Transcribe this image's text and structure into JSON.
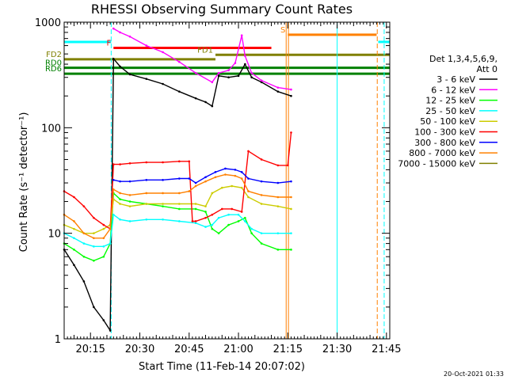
{
  "chart_data": {
    "type": "line",
    "title": "RHESSI Observing Summary Count Rates",
    "xlabel": "Start Time (11-Feb-14 20:07:02)",
    "ylabel": "Count Rate (s⁻¹ detector⁻¹)",
    "x_unit": "minutes after 20:07:02",
    "xlim": [
      0,
      99
    ],
    "ylim": [
      1,
      1000
    ],
    "yscale": "log",
    "x_ticks": [
      {
        "label": "20:15",
        "x": 8
      },
      {
        "label": "20:30",
        "x": 23
      },
      {
        "label": "20:45",
        "x": 38
      },
      {
        "label": "21:00",
        "x": 53
      },
      {
        "label": "21:15",
        "x": 68
      },
      {
        "label": "21:30",
        "x": 83
      },
      {
        "label": "21:45",
        "x": 98
      }
    ],
    "y_ticks": [
      {
        "label": "1",
        "y": 1
      },
      {
        "label": "10",
        "y": 10
      },
      {
        "label": "100",
        "y": 100
      },
      {
        "label": "1000",
        "y": 1000
      }
    ],
    "legend_header": [
      "Det 1,3,4,5,6,9,",
      "Att 0"
    ],
    "legend_position": "right",
    "series": [
      {
        "name": "3 - 6 keV",
        "color": "#000000",
        "points": [
          [
            0,
            7
          ],
          [
            3,
            5
          ],
          [
            6,
            3.5
          ],
          [
            9,
            2
          ],
          [
            12,
            1.5
          ],
          [
            14,
            1.2
          ],
          [
            15,
            450
          ],
          [
            17,
            380
          ],
          [
            20,
            320
          ],
          [
            25,
            290
          ],
          [
            30,
            260
          ],
          [
            35,
            220
          ],
          [
            40,
            190
          ],
          [
            43,
            175
          ],
          [
            45,
            160
          ],
          [
            47,
            310
          ],
          [
            50,
            300
          ],
          [
            53,
            310
          ],
          [
            55,
            400
          ],
          [
            57,
            300
          ],
          [
            60,
            270
          ],
          [
            65,
            220
          ],
          [
            69,
            200
          ]
        ]
      },
      {
        "name": "6 - 12 keV",
        "color": "#ff00ff",
        "points": [
          [
            15,
            870
          ],
          [
            17,
            800
          ],
          [
            20,
            730
          ],
          [
            25,
            600
          ],
          [
            30,
            520
          ],
          [
            35,
            420
          ],
          [
            40,
            330
          ],
          [
            45,
            270
          ],
          [
            47,
            330
          ],
          [
            50,
            350
          ],
          [
            52,
            410
          ],
          [
            54,
            750
          ],
          [
            55,
            480
          ],
          [
            57,
            330
          ],
          [
            60,
            280
          ],
          [
            65,
            240
          ],
          [
            69,
            230
          ]
        ]
      },
      {
        "name": "12 - 25 keV",
        "color": "#00ff00",
        "points": [
          [
            0,
            8
          ],
          [
            3,
            7
          ],
          [
            6,
            6
          ],
          [
            9,
            5.5
          ],
          [
            12,
            6
          ],
          [
            14,
            8
          ],
          [
            15,
            24
          ],
          [
            17,
            21
          ],
          [
            20,
            20
          ],
          [
            25,
            19
          ],
          [
            30,
            18
          ],
          [
            35,
            17
          ],
          [
            40,
            17
          ],
          [
            43,
            16
          ],
          [
            45,
            11
          ],
          [
            47,
            10
          ],
          [
            50,
            12
          ],
          [
            53,
            13
          ],
          [
            55,
            14
          ],
          [
            57,
            10
          ],
          [
            60,
            8
          ],
          [
            65,
            7
          ],
          [
            69,
            7
          ]
        ]
      },
      {
        "name": "25 - 50 keV",
        "color": "#00ffff",
        "points": [
          [
            0,
            10
          ],
          [
            3,
            9
          ],
          [
            6,
            8
          ],
          [
            9,
            7.5
          ],
          [
            12,
            7.5
          ],
          [
            14,
            8
          ],
          [
            15,
            15
          ],
          [
            17,
            13.5
          ],
          [
            20,
            13
          ],
          [
            25,
            13.5
          ],
          [
            30,
            13.5
          ],
          [
            35,
            13
          ],
          [
            40,
            12.5
          ],
          [
            43,
            11.5
          ],
          [
            45,
            12
          ],
          [
            47,
            14
          ],
          [
            50,
            15
          ],
          [
            53,
            15
          ],
          [
            55,
            13
          ],
          [
            57,
            11
          ],
          [
            60,
            10
          ],
          [
            65,
            10
          ],
          [
            69,
            10
          ]
        ]
      },
      {
        "name": "50 - 100 keV",
        "color": "#cccc00",
        "points": [
          [
            0,
            12
          ],
          [
            3,
            11
          ],
          [
            6,
            10
          ],
          [
            9,
            10
          ],
          [
            12,
            11
          ],
          [
            14,
            12
          ],
          [
            15,
            21
          ],
          [
            17,
            19
          ],
          [
            20,
            18
          ],
          [
            25,
            19
          ],
          [
            30,
            19
          ],
          [
            35,
            19
          ],
          [
            40,
            19
          ],
          [
            43,
            18
          ],
          [
            45,
            24
          ],
          [
            48,
            27
          ],
          [
            51,
            28
          ],
          [
            54,
            27
          ],
          [
            56,
            22
          ],
          [
            60,
            19
          ],
          [
            65,
            18
          ],
          [
            69,
            17
          ]
        ]
      },
      {
        "name": "100 - 300 keV",
        "color": "#ff0000",
        "points": [
          [
            0,
            25
          ],
          [
            3,
            22
          ],
          [
            6,
            18
          ],
          [
            9,
            14
          ],
          [
            12,
            12
          ],
          [
            14,
            11
          ],
          [
            15,
            45
          ],
          [
            17,
            45
          ],
          [
            20,
            46
          ],
          [
            25,
            47
          ],
          [
            30,
            47
          ],
          [
            35,
            48
          ],
          [
            38,
            48
          ],
          [
            39,
            13
          ],
          [
            40,
            13
          ],
          [
            43,
            14
          ],
          [
            45,
            15
          ],
          [
            48,
            17
          ],
          [
            51,
            17
          ],
          [
            54,
            16
          ],
          [
            56,
            60
          ],
          [
            60,
            50
          ],
          [
            65,
            44
          ],
          [
            68,
            44
          ],
          [
            69,
            90
          ]
        ]
      },
      {
        "name": "300 - 800 keV",
        "color": "#0000ff",
        "points": [
          [
            15,
            32
          ],
          [
            17,
            31
          ],
          [
            20,
            31
          ],
          [
            25,
            32
          ],
          [
            30,
            32
          ],
          [
            35,
            33
          ],
          [
            38,
            33
          ],
          [
            40,
            30
          ],
          [
            43,
            34
          ],
          [
            46,
            38
          ],
          [
            49,
            41
          ],
          [
            52,
            40
          ],
          [
            54,
            38
          ],
          [
            56,
            33
          ],
          [
            60,
            31
          ],
          [
            65,
            30
          ],
          [
            69,
            31
          ]
        ]
      },
      {
        "name": "800 - 7000 keV",
        "color": "#ff8000",
        "points": [
          [
            0,
            15
          ],
          [
            3,
            13
          ],
          [
            6,
            10
          ],
          [
            9,
            9
          ],
          [
            12,
            9
          ],
          [
            14,
            11
          ],
          [
            15,
            26
          ],
          [
            17,
            24
          ],
          [
            20,
            23
          ],
          [
            25,
            24
          ],
          [
            30,
            24
          ],
          [
            35,
            24
          ],
          [
            38,
            25
          ],
          [
            40,
            28
          ],
          [
            43,
            31
          ],
          [
            46,
            34
          ],
          [
            49,
            36
          ],
          [
            52,
            35
          ],
          [
            54,
            33
          ],
          [
            56,
            25
          ],
          [
            60,
            23
          ],
          [
            65,
            22
          ],
          [
            69,
            22
          ]
        ]
      },
      {
        "name": "7000 - 15000 keV",
        "color": "#808000",
        "points": []
      }
    ],
    "vlines": [
      {
        "x": 14.3,
        "color": "#00ffff",
        "style": "dashed"
      },
      {
        "x": 67.5,
        "color": "#ff8000",
        "style": "solid"
      },
      {
        "x": 68.2,
        "color": "#ff8000",
        "style": "solid"
      },
      {
        "x": 83.0,
        "color": "#00ffff",
        "style": "solid"
      },
      {
        "x": 95.2,
        "color": "#ff8000",
        "style": "dashed"
      },
      {
        "x": 97.3,
        "color": "#00ffff",
        "style": "dashed"
      }
    ],
    "hbars": [
      {
        "label": "",
        "color": "#00ffff",
        "x": [
          0,
          14.3
        ],
        "y": 650
      },
      {
        "label": "",
        "color": "#00ffff",
        "x": [
          95.5,
          99
        ],
        "y": 650
      },
      {
        "label": "S",
        "color": "#ff8000",
        "x": [
          68,
          95
        ],
        "y": 760
      },
      {
        "label": "F",
        "color": "#ff0000",
        "x": [
          15,
          63
        ],
        "y": 570
      },
      {
        "label": "FD1",
        "color": "#808000",
        "x": [
          46,
          99
        ],
        "y": 490
      },
      {
        "label": "FD2",
        "color": "#808000",
        "x": [
          0,
          46
        ],
        "y": 445
      },
      {
        "label": "RD0",
        "color": "#008000",
        "x": [
          0,
          99
        ],
        "y": 370
      },
      {
        "label": "RD6",
        "color": "#008000",
        "x": [
          0,
          99
        ],
        "y": 325
      }
    ],
    "grid": false
  },
  "footer": {
    "timestamp": "20-Oct-2021 01:33"
  }
}
